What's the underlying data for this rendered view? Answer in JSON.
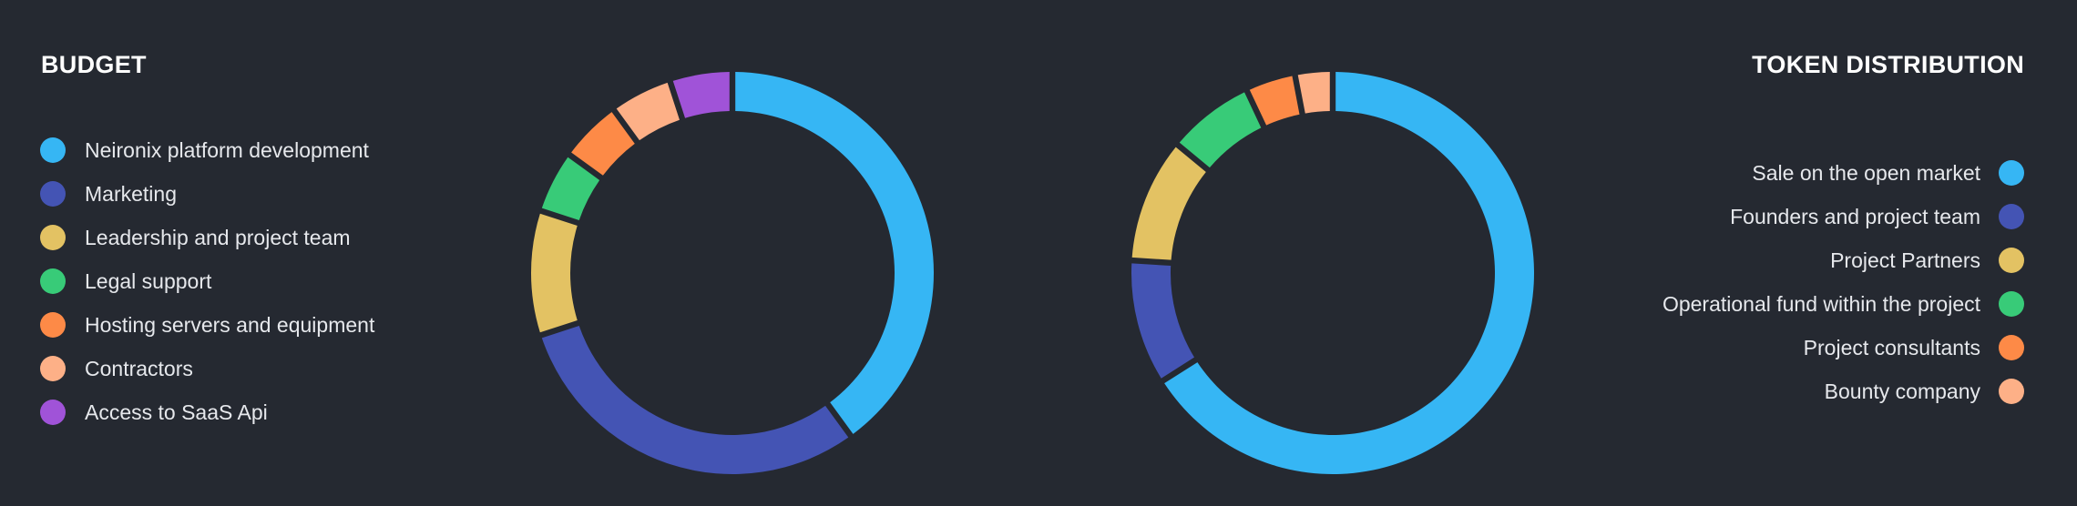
{
  "chart_data": [
    {
      "type": "pie",
      "title": "BUDGET",
      "legend": "left",
      "categories": [
        "Neironix platform development",
        "Marketing",
        "Leadership and project team",
        "Legal support",
        "Hosting servers and equipment",
        "Contractors",
        "Access to SaaS Api"
      ],
      "values": [
        40,
        30,
        10,
        5,
        5,
        5,
        5
      ],
      "colors": [
        "#36b6f4",
        "#4454b4",
        "#e3c263",
        "#38cb78",
        "#fd8a47",
        "#fdb087",
        "#a053d8"
      ]
    },
    {
      "type": "pie",
      "title": "TOKEN DISTRIBUTION",
      "legend": "right",
      "categories": [
        "Sale on the open market",
        "Founders and project team",
        "Project Partners",
        "Operational fund within the project",
        "Project consultants",
        "Bounty company"
      ],
      "values": [
        66,
        10,
        10,
        7,
        4,
        3
      ],
      "colors": [
        "#36b6f4",
        "#4454b4",
        "#e3c263",
        "#38cb78",
        "#fd8a47",
        "#fdb087"
      ]
    }
  ]
}
